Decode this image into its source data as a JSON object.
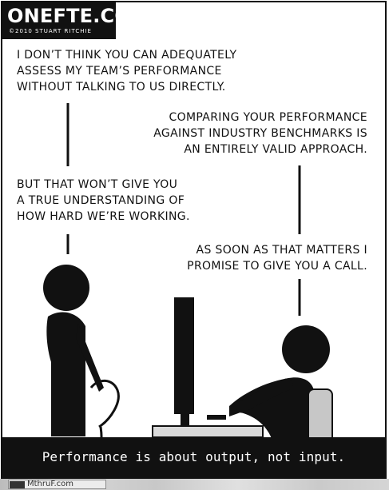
{
  "comic": {
    "logo": {
      "title": "ONEFTE.COM",
      "copyright": "©2010 STUART RITCHIE"
    },
    "dialogue": {
      "left_1": [
        "I DON’T THINK YOU CAN ADEQUATELY",
        "ASSESS MY TEAM’S PERFORMANCE",
        "WITHOUT TALKING TO US DIRECTLY."
      ],
      "right_1": [
        "COMPARING YOUR PERFORMANCE",
        "AGAINST INDUSTRY BENCHMARKS IS",
        "AN ENTIRELY VALID APPROACH."
      ],
      "left_2": [
        "BUT THAT WON’T GIVE YOU",
        "A TRUE UNDERSTANDING OF",
        "HOW HARD WE’RE WORKING."
      ],
      "right_2": [
        "AS SOON AS THAT MATTERS I",
        "PROMISE TO GIVE YOU A CALL."
      ]
    },
    "caption": "Performance is about output, not input.",
    "colors": {
      "ink": "#111111",
      "paper": "#ffffff",
      "desk": "#d9d9d9",
      "chair": "#c7c7c7"
    }
  },
  "footer": {
    "watermark": "MthruF.com"
  }
}
